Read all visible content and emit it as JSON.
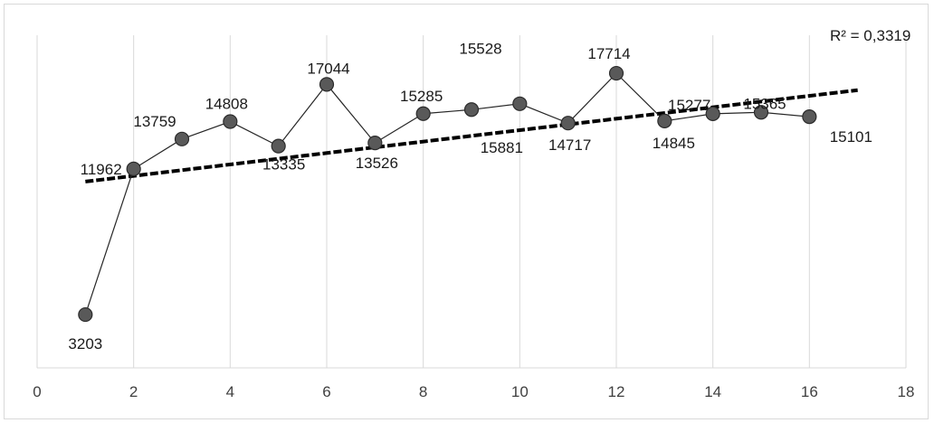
{
  "chart_data": {
    "type": "scatter",
    "title": "",
    "xlabel": "",
    "ylabel": "",
    "xlim": [
      0,
      18
    ],
    "ylim": [
      0,
      20000
    ],
    "x_ticks": [
      0,
      2,
      4,
      6,
      8,
      10,
      12,
      14,
      16,
      18
    ],
    "x_tick_labels": [
      "0",
      "2",
      "4",
      "6",
      "8",
      "10",
      "12",
      "14",
      "16",
      "18"
    ],
    "vertical_grid": true,
    "horizontal_grid": false,
    "y_axis_labels_shown": false,
    "series": [
      {
        "x": [
          1,
          2,
          3,
          4,
          5,
          6,
          7,
          8,
          9,
          10,
          11,
          12,
          13,
          14,
          15,
          16
        ],
        "y": [
          3203,
          11962,
          13759,
          14808,
          13335,
          17044,
          13526,
          15285,
          15528,
          15881,
          14717,
          17714,
          14845,
          15277,
          15365,
          15101
        ],
        "labels": [
          "3203",
          "11962",
          "13759",
          "14808",
          "13335",
          "17044",
          "13526",
          "15285",
          "15528",
          "15881",
          "14717",
          "17714",
          "14845",
          "15277",
          "15365",
          "15101"
        ],
        "marker_color": "#595959",
        "line_color": "#262626"
      }
    ],
    "trendline": {
      "type": "linear",
      "x_range": [
        1,
        17
      ],
      "y_range": [
        11200,
        16700
      ],
      "style": "dashed",
      "color": "#000000",
      "r_squared_label": "R² = 0,3319"
    }
  }
}
